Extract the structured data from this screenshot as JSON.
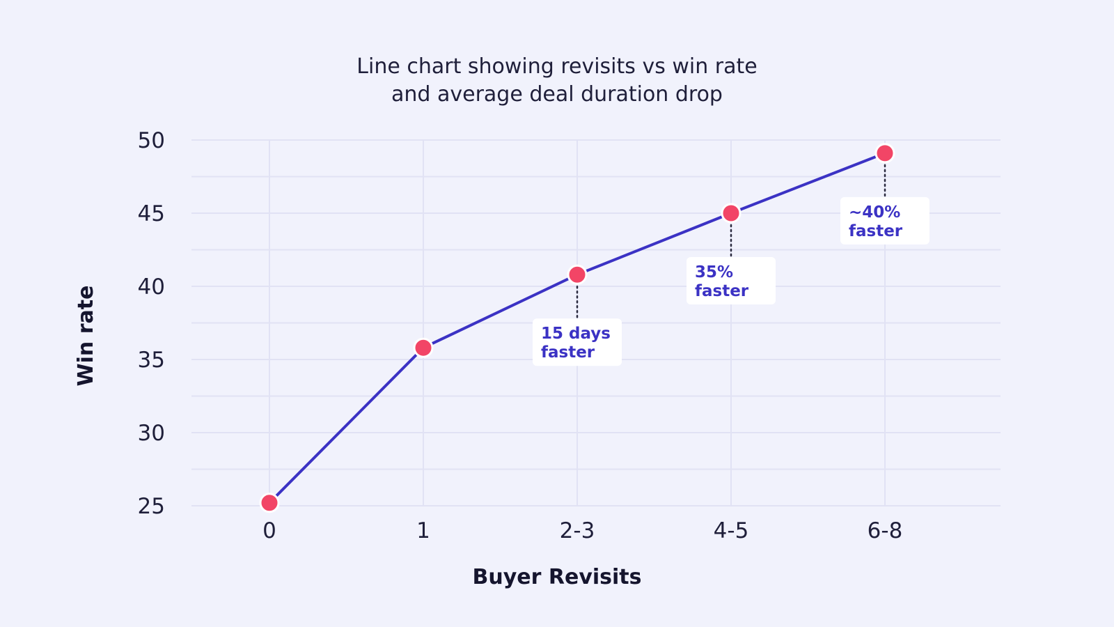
{
  "chart_data": {
    "type": "line",
    "title": [
      "Line chart showing revisits vs win rate",
      "and average deal duration drop"
    ],
    "xlabel": "Buyer Revisits",
    "ylabel": "Win rate",
    "categories": [
      "0",
      "1",
      "2-3",
      "4-5",
      "6-8"
    ],
    "series": [
      {
        "values": [
          25.2,
          35.8,
          40.8,
          45.0,
          49.1
        ]
      }
    ],
    "ylim": [
      25,
      50
    ],
    "yticks": [
      25,
      30,
      35,
      40,
      45,
      50
    ],
    "grid": true,
    "annotations": [
      {
        "category": "2-3",
        "lines": [
          "15 days",
          "faster"
        ]
      },
      {
        "category": "4-5",
        "lines": [
          "35%",
          "faster"
        ]
      },
      {
        "category": "6-8",
        "lines": [
          "~40%",
          "faster"
        ]
      }
    ],
    "colors": {
      "line": "#3b32c4",
      "marker": "#f24566",
      "marker_outline": "#ffffff",
      "grid": "#e1e2f4",
      "annotation_text": "#3b32c4",
      "annotation_box": "#ffffff"
    }
  }
}
